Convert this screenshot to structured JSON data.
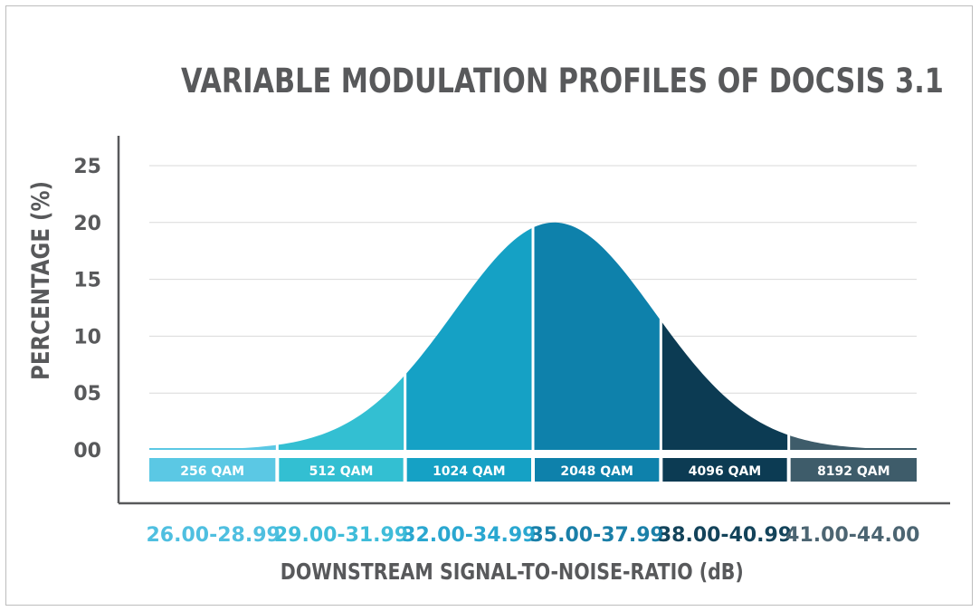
{
  "chart_data": {
    "type": "area",
    "title": "VARIABLE MODULATION PROFILES OF DOCSIS 3.1",
    "xlabel": "DOWNSTREAM SIGNAL-TO-NOISE-RATIO (dB)",
    "ylabel": "PERCENTAGE (%)",
    "yticks": [
      "00",
      "05",
      "10",
      "15",
      "20",
      "25"
    ],
    "ylim": [
      0,
      25
    ],
    "xlim": [
      26,
      44
    ],
    "grid": true,
    "distribution": {
      "peak_x": 35.5,
      "peak_y": 20.0,
      "sd": 2.35
    },
    "bands": [
      {
        "modulation": "256 QAM",
        "range": "26.00-28.99",
        "x_start": 26,
        "x_end": 29,
        "color": "#5bc8e4",
        "range_color": "#4fbfe0"
      },
      {
        "modulation": "512 QAM",
        "range": "29.00-31.99",
        "x_start": 29,
        "x_end": 32,
        "color": "#33bfd2",
        "range_color": "#3fbcd9"
      },
      {
        "modulation": "1024 QAM",
        "range": "32.00-34.99",
        "x_start": 32,
        "x_end": 35,
        "color": "#15a1c5",
        "range_color": "#2aa7d0"
      },
      {
        "modulation": "2048 QAM",
        "range": "35.00-37.99",
        "x_start": 35,
        "x_end": 38,
        "color": "#0e81ab",
        "range_color": "#1a7fa8"
      },
      {
        "modulation": "4096 QAM",
        "range": "38.00-40.99",
        "x_start": 38,
        "x_end": 41,
        "color": "#0c3b53",
        "range_color": "#13435a"
      },
      {
        "modulation": "8192 QAM",
        "range": "41.00-44.00",
        "x_start": 41,
        "x_end": 44,
        "color": "#3e5c6a",
        "range_color": "#4c6572"
      }
    ]
  }
}
